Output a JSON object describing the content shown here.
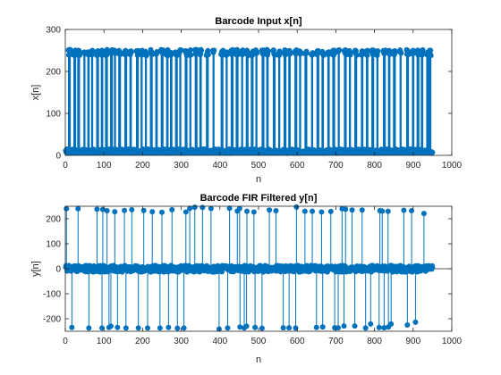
{
  "colors": {
    "series": "#0072BD",
    "axes": "#262626",
    "background": "#ffffff"
  },
  "chart_data": [
    {
      "type": "stem",
      "title": "Barcode Input x[n]",
      "xlabel": "n",
      "ylabel": "x[n]",
      "xlim": [
        0,
        1000
      ],
      "ylim": [
        0,
        300
      ],
      "xticks": [
        0,
        100,
        200,
        300,
        400,
        500,
        600,
        700,
        800,
        900,
        1000
      ],
      "yticks": [
        0,
        100,
        200,
        300
      ],
      "n_start": 1,
      "n_end": 950,
      "low_value": 10,
      "high_value": 245,
      "bars": [
        [
          8,
          13
        ],
        [
          22,
          27
        ],
        [
          32,
          37
        ],
        [
          48,
          51
        ],
        [
          58,
          62
        ],
        [
          68,
          71
        ],
        [
          81,
          86
        ],
        [
          93,
          97
        ],
        [
          104,
          109
        ],
        [
          117,
          122
        ],
        [
          127,
          130
        ],
        [
          138,
          143
        ],
        [
          154,
          159
        ],
        [
          167,
          171
        ],
        [
          184,
          189
        ],
        [
          196,
          199
        ],
        [
          207,
          210
        ],
        [
          220,
          225
        ],
        [
          234,
          238
        ],
        [
          248,
          253
        ],
        [
          262,
          266
        ],
        [
          272,
          276
        ],
        [
          285,
          290
        ],
        [
          296,
          299
        ],
        [
          310,
          315
        ],
        [
          322,
          325
        ],
        [
          336,
          341
        ],
        [
          348,
          352
        ],
        [
          365,
          370
        ],
        [
          382,
          385
        ],
        [
          403,
          408
        ],
        [
          416,
          419
        ],
        [
          429,
          434
        ],
        [
          442,
          447
        ],
        [
          456,
          459
        ],
        [
          468,
          473
        ],
        [
          481,
          486
        ],
        [
          493,
          496
        ],
        [
          509,
          514
        ],
        [
          521,
          525
        ],
        [
          538,
          543
        ],
        [
          552,
          555
        ],
        [
          566,
          571
        ],
        [
          578,
          582
        ],
        [
          594,
          599
        ],
        [
          606,
          609
        ],
        [
          620,
          625
        ],
        [
          637,
          640
        ],
        [
          651,
          656
        ],
        [
          664,
          668
        ],
        [
          679,
          683
        ],
        [
          692,
          697
        ],
        [
          706,
          709
        ],
        [
          722,
          727
        ],
        [
          735,
          738
        ],
        [
          749,
          754
        ],
        [
          766,
          770
        ],
        [
          779,
          783
        ],
        [
          793,
          798
        ],
        [
          806,
          809
        ],
        [
          823,
          828
        ],
        [
          836,
          840
        ],
        [
          849,
          854
        ],
        [
          866,
          869
        ],
        [
          883,
          888
        ],
        [
          898,
          902
        ],
        [
          910,
          915
        ],
        [
          921,
          925
        ],
        [
          935,
          946
        ]
      ]
    },
    {
      "type": "stem",
      "title": "Barcode FIR Filtered y[n]",
      "xlabel": "n",
      "ylabel": "y[n]",
      "xlim": [
        0,
        1000
      ],
      "ylim": [
        -250,
        250
      ],
      "xticks": [
        0,
        100,
        200,
        300,
        400,
        500,
        600,
        700,
        800,
        900,
        1000
      ],
      "yticks": [
        -200,
        -100,
        0,
        100,
        200
      ],
      "n_start": 1,
      "n_end": 950,
      "baseline": 0,
      "positive_spikes": [
        [
          3,
          240
        ],
        [
          33,
          240
        ],
        [
          82,
          238
        ],
        [
          97,
          237
        ],
        [
          108,
          232
        ],
        [
          128,
          228
        ],
        [
          153,
          233
        ],
        [
          172,
          236
        ],
        [
          203,
          233
        ],
        [
          225,
          228
        ],
        [
          250,
          226
        ],
        [
          276,
          236
        ],
        [
          312,
          227
        ],
        [
          322,
          241
        ],
        [
          335,
          246
        ],
        [
          355,
          245
        ],
        [
          377,
          241
        ],
        [
          425,
          242
        ],
        [
          445,
          231
        ],
        [
          451,
          241
        ],
        [
          470,
          230
        ],
        [
          488,
          227
        ],
        [
          528,
          235
        ],
        [
          545,
          232
        ],
        [
          598,
          247
        ],
        [
          620,
          230
        ],
        [
          639,
          230
        ],
        [
          663,
          227
        ],
        [
          687,
          229
        ],
        [
          716,
          240
        ],
        [
          725,
          238
        ],
        [
          742,
          235
        ],
        [
          768,
          235
        ],
        [
          814,
          232
        ],
        [
          820,
          231
        ],
        [
          835,
          230
        ],
        [
          876,
          234
        ],
        [
          896,
          232
        ],
        [
          928,
          221
        ]
      ],
      "negative_spikes": [
        [
          17,
          -235
        ],
        [
          61,
          -237
        ],
        [
          95,
          -237
        ],
        [
          113,
          -235
        ],
        [
          118,
          -230
        ],
        [
          135,
          -235
        ],
        [
          157,
          -237
        ],
        [
          189,
          -237
        ],
        [
          213,
          -237
        ],
        [
          245,
          -237
        ],
        [
          267,
          -235
        ],
        [
          290,
          -238
        ],
        [
          307,
          -237
        ],
        [
          398,
          -241
        ],
        [
          420,
          -237
        ],
        [
          452,
          -233
        ],
        [
          463,
          -237
        ],
        [
          469,
          -230
        ],
        [
          491,
          -235
        ],
        [
          509,
          -238
        ],
        [
          564,
          -236
        ],
        [
          579,
          -236
        ],
        [
          596,
          -237
        ],
        [
          650,
          -235
        ],
        [
          666,
          -233
        ],
        [
          697,
          -236
        ],
        [
          706,
          -236
        ],
        [
          721,
          -229
        ],
        [
          749,
          -229
        ],
        [
          777,
          -237
        ],
        [
          790,
          -221
        ],
        [
          812,
          -235
        ],
        [
          825,
          -236
        ],
        [
          836,
          -233
        ],
        [
          843,
          -221
        ],
        [
          885,
          -225
        ],
        [
          906,
          -214
        ],
        [
          952,
          -241
        ]
      ]
    }
  ]
}
